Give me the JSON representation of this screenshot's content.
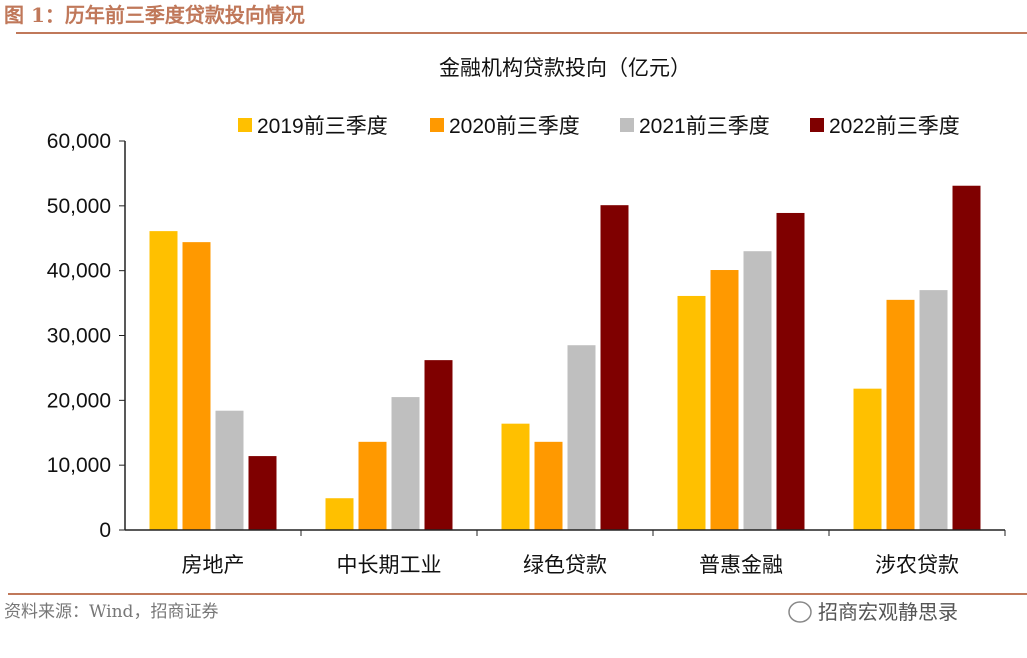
{
  "figure_label": "图 1：历年前三季度贷款投向情况",
  "source": "资料来源：Wind，招商证券",
  "watermark": "招商宏观静思录",
  "chart_data": {
    "type": "bar",
    "title": "金融机构贷款投向（亿元）",
    "xlabel": "",
    "ylabel": "",
    "ylim": [
      0,
      60000
    ],
    "yticks": [
      0,
      10000,
      20000,
      30000,
      40000,
      50000,
      60000
    ],
    "ytick_labels": [
      "0",
      "10,000",
      "20,000",
      "30,000",
      "40,000",
      "50,000",
      "60,000"
    ],
    "grid": false,
    "legend_position": "top",
    "categories": [
      "房地产",
      "中长期工业",
      "绿色贷款",
      "普惠金融",
      "涉农贷款"
    ],
    "series": [
      {
        "name": "2019前三季度",
        "color": "#ffc000",
        "values": [
          46100,
          4900,
          16400,
          36100,
          21800
        ]
      },
      {
        "name": "2020前三季度",
        "color": "#ff9900",
        "values": [
          44400,
          13600,
          13600,
          40100,
          35500
        ]
      },
      {
        "name": "2021前三季度",
        "color": "#bfbfbf",
        "values": [
          18400,
          20500,
          28500,
          43000,
          37000
        ]
      },
      {
        "name": "2022前三季度",
        "color": "#7f0000",
        "values": [
          11400,
          26200,
          50100,
          48900,
          53100
        ]
      }
    ]
  }
}
